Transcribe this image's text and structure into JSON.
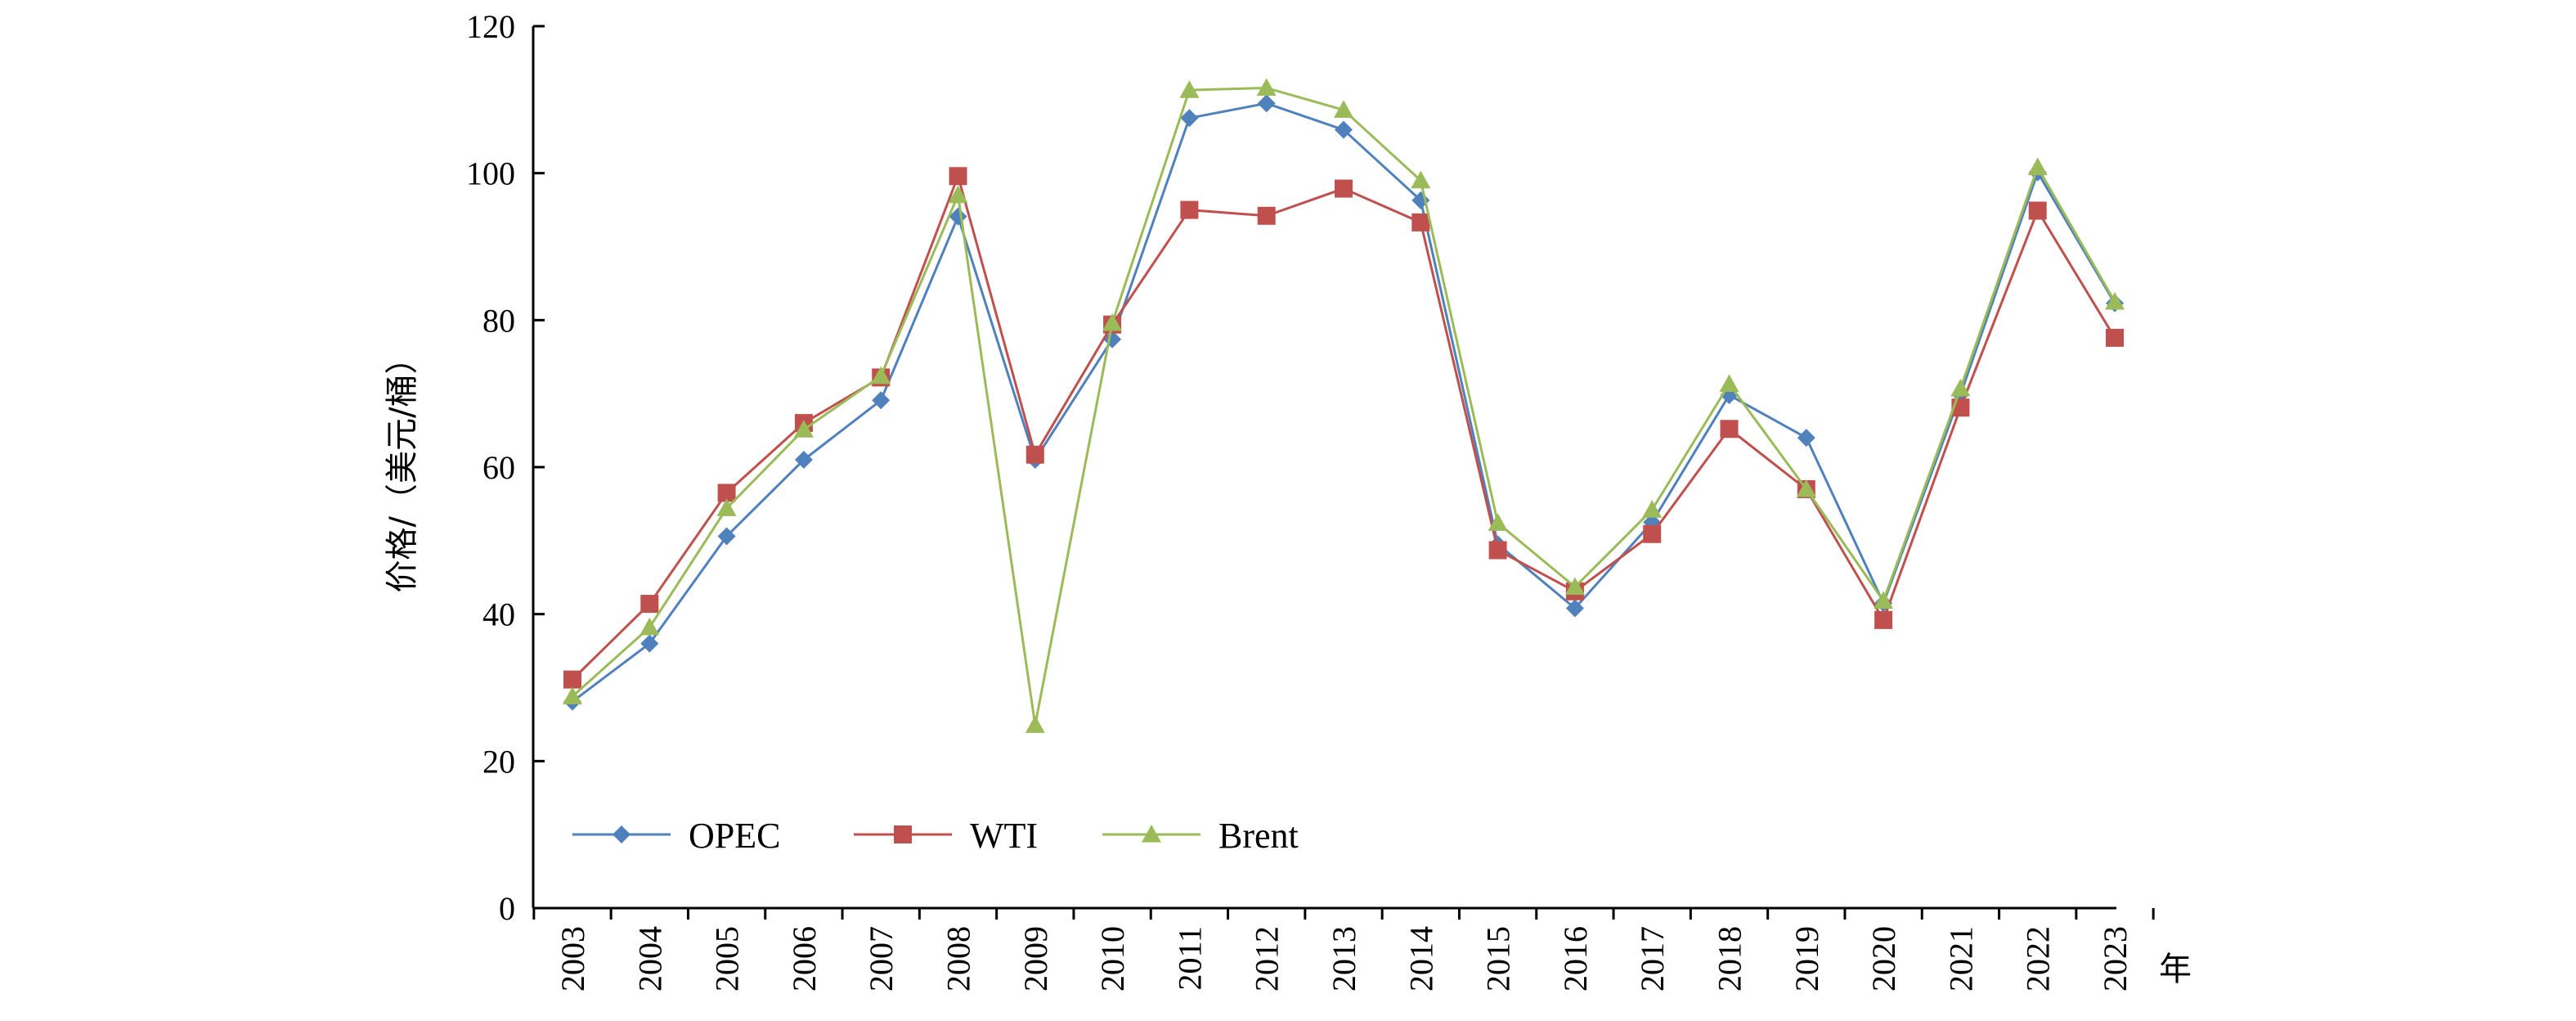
{
  "chart_data": {
    "type": "line",
    "title": "",
    "xlabel": "年",
    "ylabel": "价格/（美元/桶）",
    "ylim": [
      0,
      120
    ],
    "yticks": [
      "0",
      "20",
      "40",
      "60",
      "80",
      "100",
      "120"
    ],
    "categories": [
      "2003",
      "2004",
      "2005",
      "2006",
      "2007",
      "2008",
      "2009",
      "2010",
      "2011",
      "2012",
      "2013",
      "2014",
      "2015",
      "2016",
      "2017",
      "2018",
      "2019",
      "2020",
      "2021",
      "2022",
      "2023"
    ],
    "grid": false,
    "legend_position": "bottom-left",
    "series": [
      {
        "name": "OPEC",
        "color": "#4F81BD",
        "marker": "diamond",
        "values": [
          28.1,
          36.0,
          50.6,
          61.0,
          69.1,
          94.1,
          61.0,
          77.4,
          107.5,
          109.5,
          105.9,
          96.3,
          49.5,
          40.8,
          52.5,
          69.8,
          64.0,
          41.5,
          69.9,
          100.1,
          82.3
        ]
      },
      {
        "name": "WTI",
        "color": "#C0504D",
        "marker": "square",
        "values": [
          31.1,
          41.4,
          56.5,
          66.0,
          72.2,
          99.6,
          61.7,
          79.4,
          95.0,
          94.2,
          97.9,
          93.3,
          48.7,
          43.1,
          50.9,
          65.2,
          57.0,
          39.2,
          68.1,
          94.9,
          77.6
        ]
      },
      {
        "name": "Brent",
        "color": "#9BBB59",
        "marker": "triangle",
        "values": [
          28.8,
          38.2,
          54.4,
          65.1,
          72.4,
          97.0,
          24.9,
          79.6,
          111.3,
          111.6,
          108.6,
          99.0,
          52.4,
          43.7,
          54.2,
          71.3,
          57.0,
          41.8,
          70.7,
          100.8,
          82.5
        ]
      }
    ]
  }
}
